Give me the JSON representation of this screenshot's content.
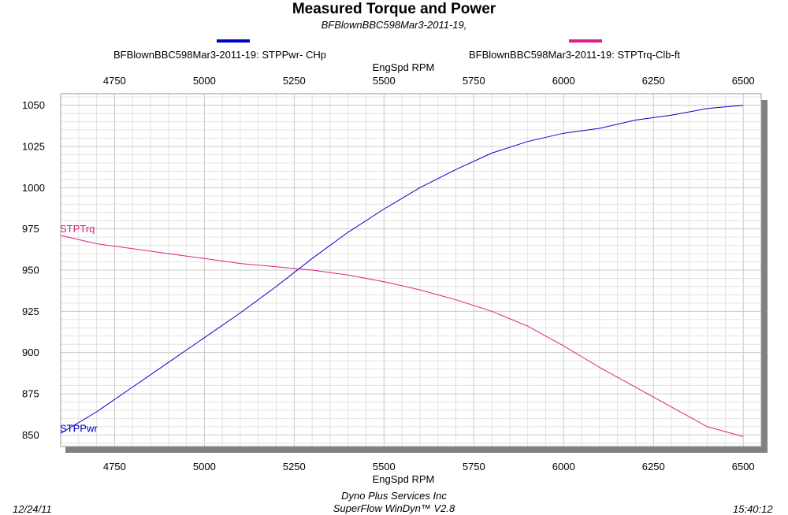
{
  "header": {
    "title": "Measured Torque and Power",
    "subtitle": "BFBlownBBC598Mar3-2011-19,"
  },
  "legend": [
    {
      "label": "BFBlownBBC598Mar3-2011-19: STPPwr- CHp",
      "color": "#0000cc"
    },
    {
      "label": "BFBlownBBC598Mar3-2011-19: STPTrq-Clb-ft",
      "color": "#dd1e88"
    }
  ],
  "footer": {
    "date": "12/24/11",
    "company": "Dyno Plus Services Inc",
    "software": "SuperFlow WinDyn™ V2.8",
    "time": "15:40:12"
  },
  "chart_data": {
    "type": "line",
    "title": "Measured Torque and Power",
    "xlabel": "EngSpd  RPM",
    "ylabel": "",
    "xlim": [
      4600,
      6550
    ],
    "ylim": [
      843,
      1057
    ],
    "xticks": [
      4750,
      5000,
      5250,
      5500,
      5750,
      6000,
      6250,
      6500
    ],
    "yticks": [
      850,
      875,
      900,
      925,
      950,
      975,
      1000,
      1025,
      1050
    ],
    "grid": true,
    "legend_position": "top",
    "series": [
      {
        "name": "STPPwr",
        "color": "#0000cc",
        "x": [
          4600,
          4700,
          4800,
          4900,
          5000,
          5100,
          5200,
          5300,
          5400,
          5500,
          5600,
          5700,
          5800,
          5900,
          6000,
          6100,
          6200,
          6300,
          6400,
          6500
        ],
        "y": [
          851,
          864,
          879,
          894,
          909,
          924,
          940,
          957,
          973,
          987,
          1000,
          1011,
          1021,
          1028,
          1033,
          1036,
          1041,
          1044,
          1048,
          1050
        ]
      },
      {
        "name": "STPTrq",
        "color": "#dd1e88",
        "x": [
          4600,
          4700,
          4800,
          4900,
          5000,
          5100,
          5200,
          5300,
          5400,
          5500,
          5600,
          5700,
          5800,
          5900,
          6000,
          6100,
          6200,
          6300,
          6400,
          6500
        ],
        "y": [
          971,
          966,
          963,
          960,
          957,
          954,
          952,
          950,
          947,
          943,
          938,
          932,
          925,
          916,
          904,
          891,
          879,
          867,
          855,
          849
        ]
      }
    ]
  }
}
